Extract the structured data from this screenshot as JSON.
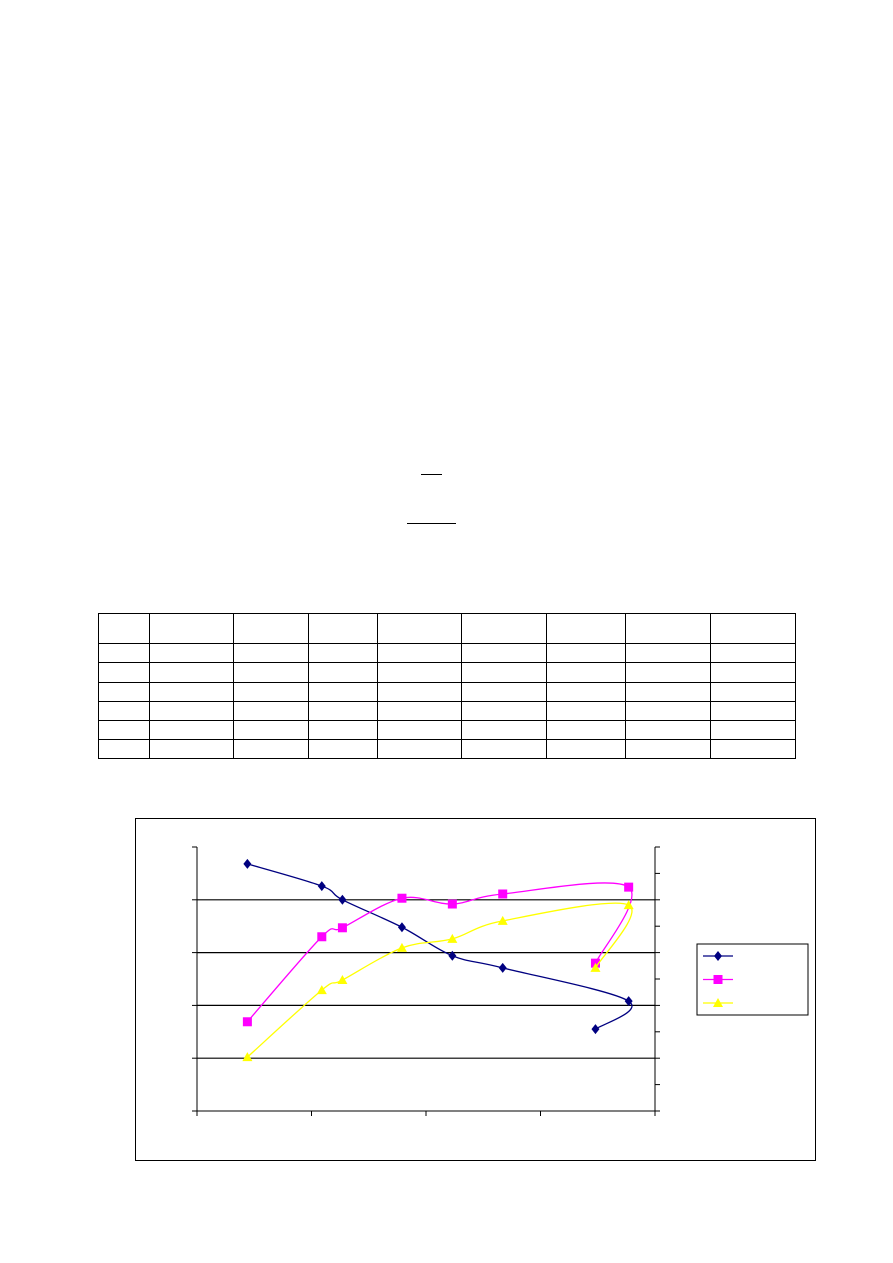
{
  "chart_data": {
    "type": "line",
    "title": "",
    "xlabel": "",
    "ylabel": "",
    "xlim": [
      0,
      4
    ],
    "ylim": [
      0,
      5
    ],
    "grid": "horizontal",
    "legend": "right",
    "smoothed": true,
    "series": [
      {
        "color": "#000080",
        "marker": "diamond",
        "x": [
          0.44,
          1.09,
          1.27,
          1.79,
          2.23,
          2.67,
          3.77,
          3.48
        ],
        "y": [
          4.68,
          4.26,
          4.0,
          3.48,
          2.94,
          2.71,
          2.08,
          1.55
        ]
      },
      {
        "color": "#ff00ff",
        "marker": "square",
        "x": [
          0.44,
          1.09,
          1.27,
          1.79,
          2.23,
          2.67,
          3.77,
          3.48
        ],
        "y": [
          1.69,
          3.3,
          3.47,
          4.03,
          3.92,
          4.11,
          4.24,
          2.8
        ]
      },
      {
        "color": "#ffff00",
        "marker": "triangle",
        "x": [
          0.44,
          1.09,
          1.27,
          1.79,
          2.23,
          2.67,
          3.77,
          3.48
        ],
        "y": [
          1.02,
          2.29,
          2.48,
          3.09,
          3.26,
          3.6,
          3.9,
          2.71
        ]
      }
    ]
  }
}
